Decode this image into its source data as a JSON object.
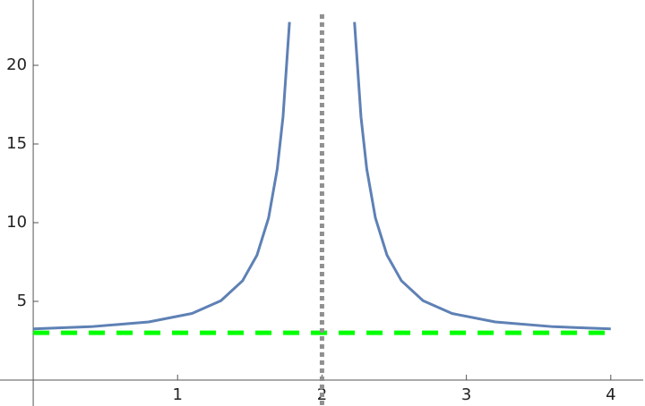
{
  "chart_data": {
    "type": "line",
    "x": [
      0,
      0.4,
      0.8,
      1.1,
      1.3,
      1.45,
      1.55,
      1.63,
      1.69,
      1.73,
      1.775,
      2,
      2.225,
      2.27,
      2.31,
      2.37,
      2.45,
      2.55,
      2.7,
      2.9,
      3.2,
      3.6,
      4
    ],
    "series": [
      {
        "color": "#5e81b5",
        "values": [
          3.25,
          3.39,
          3.69,
          4.23,
          5.04,
          6.31,
          7.94,
          10.3,
          13.41,
          16.72,
          22.75,
          null,
          22.75,
          16.72,
          13.41,
          10.3,
          7.94,
          6.31,
          5.04,
          4.23,
          3.69,
          3.39,
          3.25
        ]
      }
    ],
    "vlines": [
      {
        "x": 2,
        "color": "#909090"
      }
    ],
    "hlines": [
      {
        "y": 3,
        "color": "#00ff00"
      }
    ],
    "xlim": [
      -0.23,
      4.237
    ],
    "ylim": [
      -1.65,
      24.15
    ],
    "xticks": [
      1,
      2,
      3,
      4
    ],
    "yticks": [
      5,
      10,
      15,
      20
    ]
  }
}
